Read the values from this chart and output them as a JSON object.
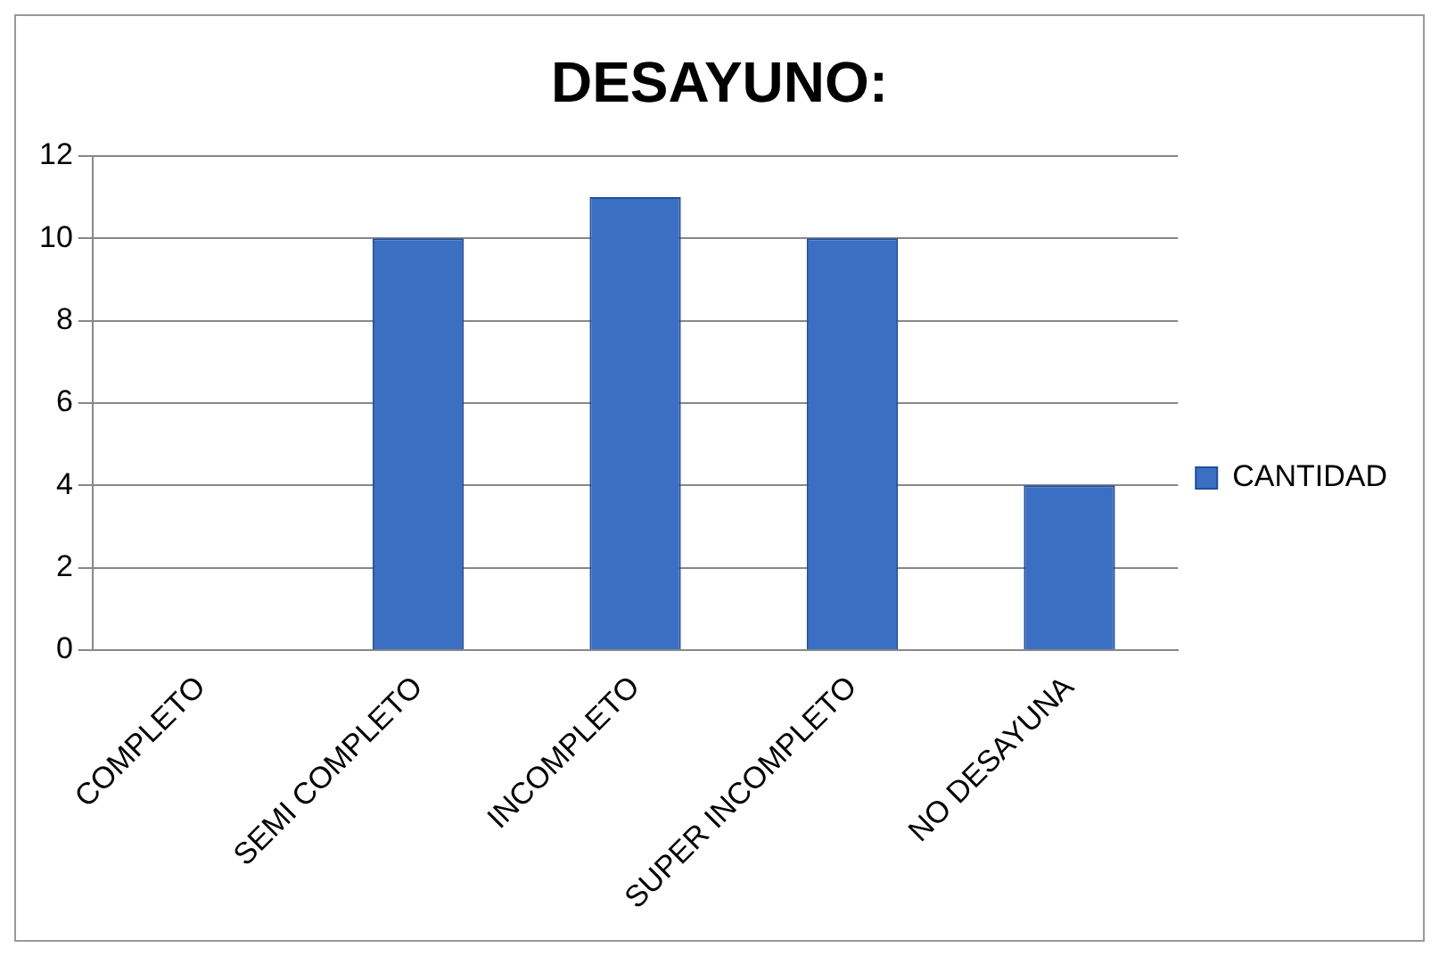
{
  "chart_data": {
    "type": "bar",
    "title": "DESAYUNO:",
    "categories": [
      "COMPLETO",
      "SEMI COMPLETO",
      "INCOMPLETO",
      "SUPER INCOMPLETO",
      "NO DESAYUNA"
    ],
    "series": [
      {
        "name": "CANTIDAD",
        "color": "#3a6fc4",
        "values": [
          0,
          10,
          11,
          10,
          4
        ]
      }
    ],
    "ylim": [
      0,
      12
    ],
    "yticks": [
      0,
      2,
      4,
      6,
      8,
      10,
      12
    ],
    "grid": "y",
    "legend": "right"
  }
}
